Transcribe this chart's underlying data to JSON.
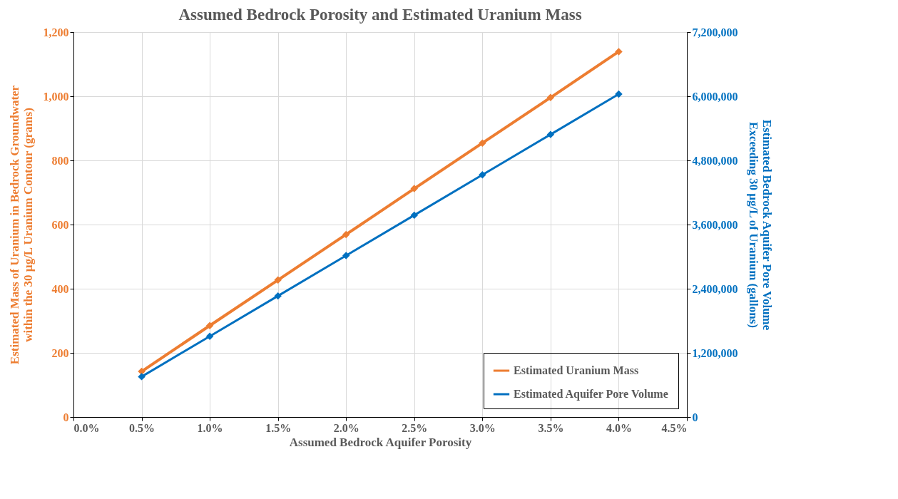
{
  "chart_data": {
    "type": "line",
    "title": "Assumed Bedrock Porosity and Estimated Uranium Mass",
    "xlabel": "Assumed Bedrock Aquifer Porosity",
    "ylabel": "Estimated Mass of Uranium in Bedrock Groundwater within the 30 µg/L Uranium Contour (grams)",
    "y2label": "Estimated Bedrock Aquifer Pore Volume Exceeding 30 µg/L of Uranium (gallons)",
    "x": [
      0.5,
      1.0,
      1.5,
      2.0,
      2.5,
      3.0,
      3.5,
      4.0
    ],
    "series": [
      {
        "name": "Estimated Uranium Mass",
        "color": "#ed7d31",
        "values": [
          142,
          285,
          427,
          569,
          712,
          854,
          996,
          1139
        ]
      },
      {
        "name": "Estimated Aquifer Pore Volume",
        "color": "#0070c0",
        "axis": "y2",
        "values": [
          755000,
          1510000,
          2265000,
          3020000,
          3775000,
          4530000,
          5285000,
          6040000
        ]
      }
    ],
    "xlim": [
      0,
      4.5
    ],
    "xticks": [
      {
        "value": 0,
        "label": "0.0%"
      },
      {
        "value": 0.5,
        "label": "0.5%"
      },
      {
        "value": 1.0,
        "label": "1.0%"
      },
      {
        "value": 1.5,
        "label": "1.5%"
      },
      {
        "value": 2.0,
        "label": "2.0%"
      },
      {
        "value": 2.5,
        "label": "2.5%"
      },
      {
        "value": 3.0,
        "label": "3.0%"
      },
      {
        "value": 3.5,
        "label": "3.5%"
      },
      {
        "value": 4.0,
        "label": "4.0%"
      },
      {
        "value": 4.5,
        "label": "4.5%"
      }
    ],
    "ylim": [
      0,
      1200
    ],
    "yticks": [
      {
        "value": 0,
        "label": "0"
      },
      {
        "value": 200,
        "label": "200"
      },
      {
        "value": 400,
        "label": "400"
      },
      {
        "value": 600,
        "label": "600"
      },
      {
        "value": 800,
        "label": "800"
      },
      {
        "value": 1000,
        "label": "1,000"
      },
      {
        "value": 1200,
        "label": "1,200"
      }
    ],
    "y2lim": [
      0,
      7200000
    ],
    "y2ticks": [
      {
        "value": 0,
        "label": "0"
      },
      {
        "value": 1200000,
        "label": "1,200,000"
      },
      {
        "value": 2400000,
        "label": "2,400,000"
      },
      {
        "value": 3600000,
        "label": "3,600,000"
      },
      {
        "value": 4800000,
        "label": "4,800,000"
      },
      {
        "value": 6000000,
        "label": "6,000,000"
      },
      {
        "value": 7200000,
        "label": "7,200,000"
      }
    ],
    "grid": true,
    "legend": "bottom right",
    "marker": "diamond",
    "line_style": "solid"
  }
}
